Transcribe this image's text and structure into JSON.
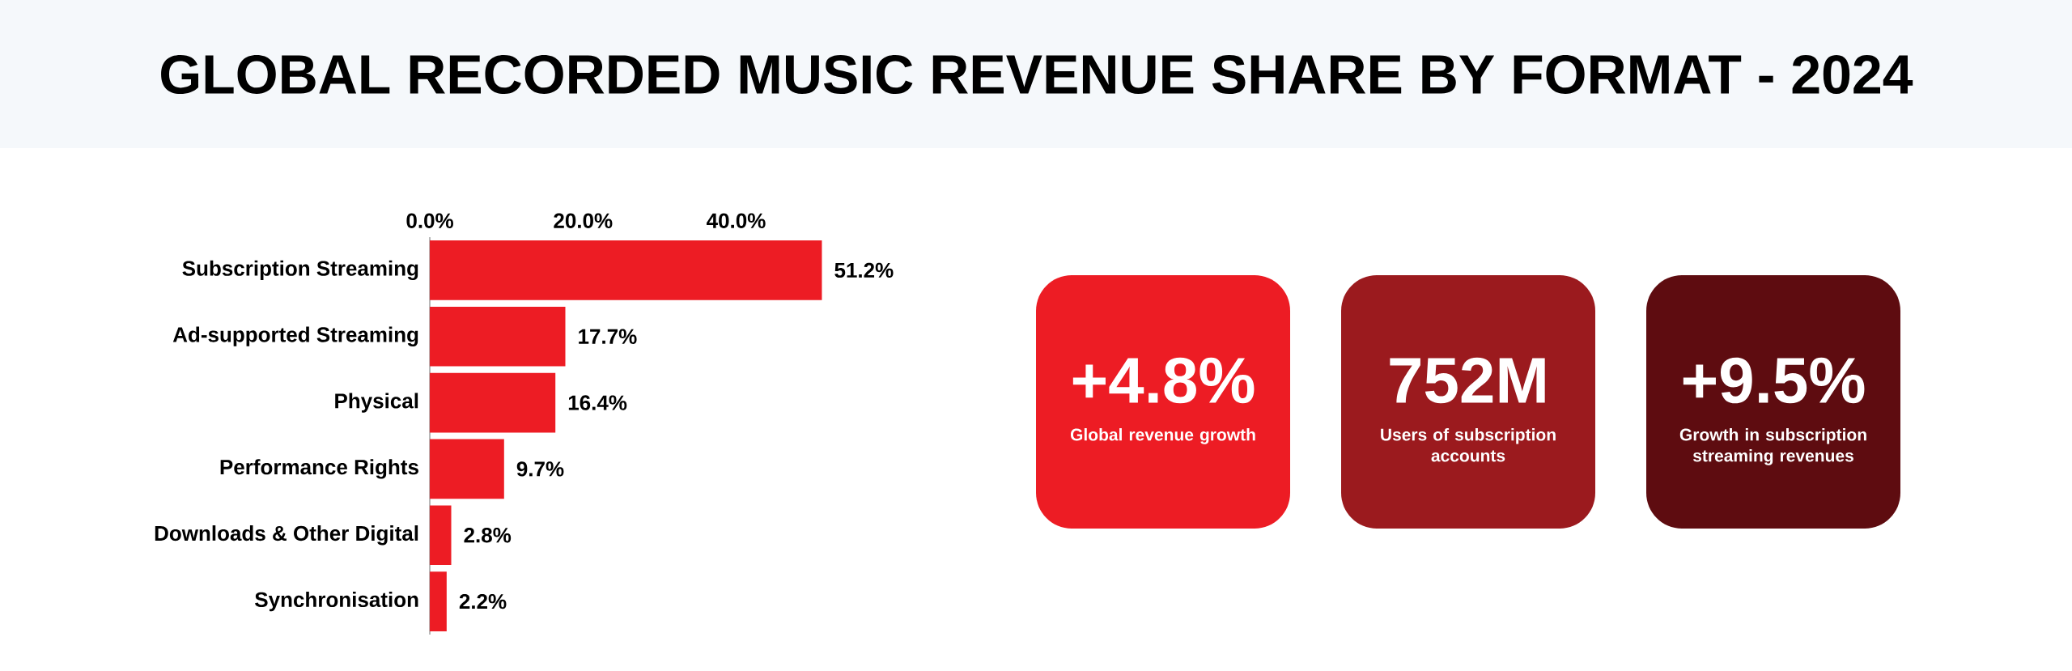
{
  "chart_data": [
    {
      "type": "bar",
      "title": "GLOBAL RECORDED MUSIC REVENUE SHARE BY FORMAT - 2024",
      "orientation": "horizontal",
      "categories": [
        "Subscription Streaming",
        "Ad-supported Streaming",
        "Physical",
        "Performance Rights",
        "Downloads & Other Digital",
        "Synchronisation"
      ],
      "values": [
        51.2,
        17.7,
        16.4,
        9.7,
        2.8,
        2.2
      ],
      "value_labels": [
        "51.2%",
        "17.7%",
        "16.4%",
        "9.7%",
        "2.8%",
        "2.2%"
      ],
      "color": "#ed1c24",
      "xlim": [
        0,
        52
      ],
      "xticks": [
        {
          "value": 0,
          "label": "0.0%"
        },
        {
          "value": 20,
          "label": "20.0%"
        },
        {
          "value": 40,
          "label": "40.0%"
        }
      ]
    },
    {
      "type": "other",
      "annotations": [
        "+4.8%",
        "Global revenue growth",
        "752M",
        "Users of subscription accounts",
        "+9.5%",
        "Growth in subscription streaming revenues"
      ],
      "colors": [
        "#ed1c24",
        "#9b1a1e",
        "#5e0c10"
      ]
    }
  ]
}
